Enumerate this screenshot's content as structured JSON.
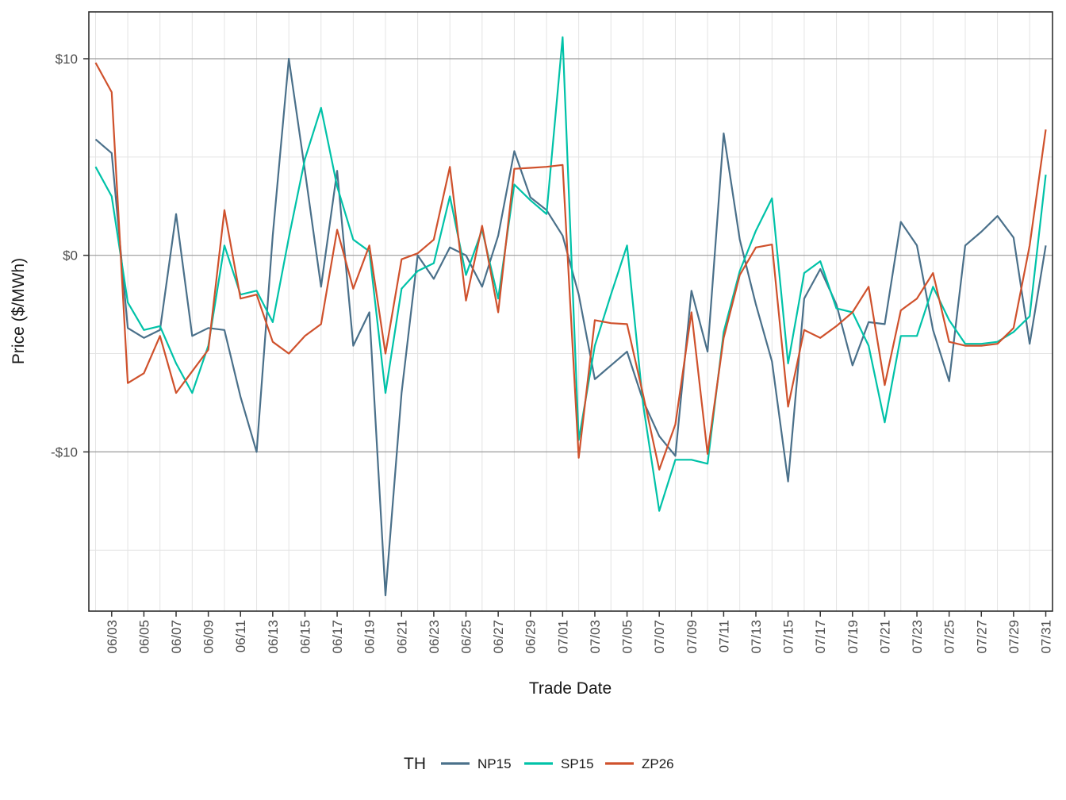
{
  "figure": {
    "kind": "ggplot-style line chart",
    "background": "#ffffff"
  },
  "y_axis": {
    "title": "Price ($/MWh)",
    "tick_labels": [
      "$10",
      "$0",
      "-$10"
    ],
    "tick_values": [
      10,
      0,
      -10
    ],
    "minor_gridline_values": [
      5,
      -5,
      -15
    ]
  },
  "x_axis": {
    "title": "Trade Date",
    "tick_labels": [
      "06/03",
      "06/05",
      "06/07",
      "06/09",
      "06/11",
      "06/13",
      "06/15",
      "06/17",
      "06/19",
      "06/21",
      "06/23",
      "06/25",
      "06/27",
      "06/29",
      "07/01",
      "07/03",
      "07/05",
      "07/07",
      "07/09",
      "07/11",
      "07/13",
      "07/15",
      "07/17",
      "07/19",
      "07/21",
      "07/23",
      "07/25",
      "07/27",
      "07/29",
      "07/31"
    ]
  },
  "legend": {
    "title": "TH",
    "items": [
      {
        "label": "NP15",
        "color": "#4a708a"
      },
      {
        "label": "SP15",
        "color": "#00c2a8"
      },
      {
        "label": "ZP26",
        "color": "#cf512c"
      }
    ]
  },
  "colors": {
    "major_gridline": "#9a9a9a",
    "minor_gridline": "#e4e4e4",
    "panel_border": "#2e2e2e",
    "tick_mark": "#333333"
  },
  "chart_data": {
    "type": "line",
    "title": "",
    "xlabel": "Trade Date",
    "ylabel": "Price ($/MWh)",
    "ylim": [
      -18.2,
      12.5
    ],
    "grid": "major horizontal gray at $10/$0/-$10, light minor grid elsewhere",
    "legend_position": "bottom",
    "x": [
      "06/02",
      "06/03",
      "06/04",
      "06/05",
      "06/06",
      "06/07",
      "06/08",
      "06/09",
      "06/10",
      "06/11",
      "06/12",
      "06/13",
      "06/14",
      "06/15",
      "06/16",
      "06/17",
      "06/18",
      "06/19",
      "06/20",
      "06/21",
      "06/22",
      "06/23",
      "06/24",
      "06/25",
      "06/26",
      "06/27",
      "06/28",
      "06/29",
      "06/30",
      "07/01",
      "07/02",
      "07/03",
      "07/04",
      "07/05",
      "07/06",
      "07/07",
      "07/08",
      "07/09",
      "07/10",
      "07/11",
      "07/12",
      "07/13",
      "07/14",
      "07/15",
      "07/16",
      "07/17",
      "07/18",
      "07/19",
      "07/20",
      "07/21",
      "07/22",
      "07/23",
      "07/24",
      "07/25",
      "07/26",
      "07/27",
      "07/28",
      "07/29",
      "07/30",
      "07/31"
    ],
    "series": [
      {
        "name": "NP15",
        "color": "#4a708a",
        "values": [
          5.9,
          5.2,
          -3.7,
          -4.2,
          -3.8,
          2.1,
          -4.1,
          -3.7,
          -3.8,
          -7.2,
          -10.0,
          1.0,
          10.0,
          4.3,
          -1.6,
          4.3,
          -4.6,
          -2.9,
          -17.3,
          -7.0,
          0.0,
          -1.2,
          0.4,
          0.0,
          -1.6,
          1.0,
          5.3,
          2.95,
          2.3,
          1.0,
          -2.0,
          -6.3,
          -5.6,
          -4.9,
          -7.4,
          -9.2,
          -10.2,
          -1.8,
          -4.9,
          6.2,
          0.8,
          -2.5,
          -5.4,
          -11.5,
          -2.2,
          -0.7,
          -2.5,
          -5.6,
          -3.4,
          -3.5,
          1.7,
          0.5,
          -3.8,
          -6.4,
          0.5,
          1.2,
          2.0,
          0.9,
          -4.5,
          0.5
        ]
      },
      {
        "name": "SP15",
        "color": "#00c2a8",
        "values": [
          4.5,
          3.0,
          -2.4,
          -3.8,
          -3.6,
          -5.5,
          -7.0,
          -4.6,
          0.5,
          -2.0,
          -1.8,
          -3.4,
          0.9,
          4.9,
          7.5,
          3.5,
          0.8,
          0.2,
          -7.0,
          -1.7,
          -0.8,
          -0.4,
          3.0,
          -1.0,
          1.3,
          -2.2,
          3.6,
          2.8,
          2.1,
          11.1,
          -9.4,
          -4.6,
          -2.0,
          0.5,
          -7.6,
          -13.0,
          -10.4,
          -10.4,
          -10.6,
          -3.9,
          -0.8,
          1.25,
          2.9,
          -5.5,
          -0.9,
          -0.3,
          -2.7,
          -2.9,
          -4.6,
          -8.5,
          -4.1,
          -4.1,
          -1.6,
          -3.3,
          -4.5,
          -4.5,
          -4.4,
          -3.9,
          -3.1,
          4.1
        ]
      },
      {
        "name": "ZP26",
        "color": "#cf512c",
        "values": [
          9.8,
          8.3,
          -6.5,
          -6.0,
          -4.1,
          -7.0,
          -5.9,
          -4.8,
          2.3,
          -2.2,
          -2.0,
          -4.4,
          -5.0,
          -4.1,
          -3.5,
          1.3,
          -1.7,
          0.5,
          -5.0,
          -0.2,
          0.1,
          0.8,
          4.5,
          -2.3,
          1.5,
          -2.9,
          4.4,
          4.45,
          4.5,
          4.6,
          -10.3,
          -3.3,
          -3.45,
          -3.5,
          -7.1,
          -10.9,
          -8.6,
          -2.9,
          -10.1,
          -4.2,
          -1.0,
          0.4,
          0.55,
          -7.7,
          -3.8,
          -4.2,
          -3.6,
          -2.9,
          -1.6,
          -6.6,
          -2.8,
          -2.2,
          -0.9,
          -4.4,
          -4.6,
          -4.6,
          -4.5,
          -3.7,
          0.5,
          6.4
        ]
      }
    ]
  }
}
